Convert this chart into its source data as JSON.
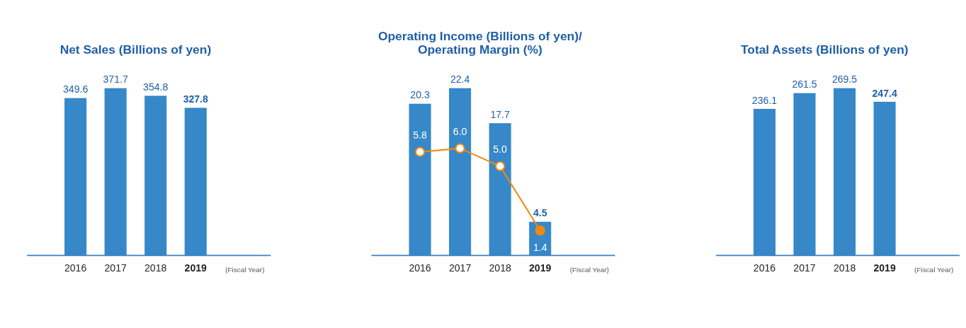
{
  "chart_data": [
    {
      "type": "bar",
      "title": "Net Sales (Billions of yen)",
      "xlabel": "(Fiscal Year)",
      "categories": [
        "2016",
        "2017",
        "2018",
        "2019"
      ],
      "values": [
        349.6,
        371.7,
        354.8,
        327.8
      ],
      "color": "#3688c8",
      "data_labels": true
    },
    {
      "type": "bar",
      "title": "Operating Income (Billions of yen)/\nOperating Margin (%)",
      "xlabel": "(Fiscal Year)",
      "categories": [
        "2016",
        "2017",
        "2018",
        "2019"
      ],
      "data_labels": true,
      "series": [
        {
          "type": "bar",
          "color": "#3688c8",
          "values": [
            20.3,
            22.4,
            17.7,
            4.5
          ]
        },
        {
          "type": "line",
          "axis": "y2",
          "color": "#ee8a12",
          "marker": "circle",
          "values": [
            5.8,
            6.0,
            5.0,
            1.4
          ],
          "value_labels": [
            "5.8",
            "6.0",
            "5.0",
            "1.4"
          ]
        }
      ]
    },
    {
      "type": "bar",
      "title": "Total Assets (Billions of yen)",
      "xlabel": "(Fiscal Year)",
      "categories": [
        "2016",
        "2017",
        "2018",
        "2019"
      ],
      "values": [
        236.1,
        261.5,
        269.5,
        247.4
      ],
      "color": "#3688c8",
      "data_labels": true
    }
  ]
}
